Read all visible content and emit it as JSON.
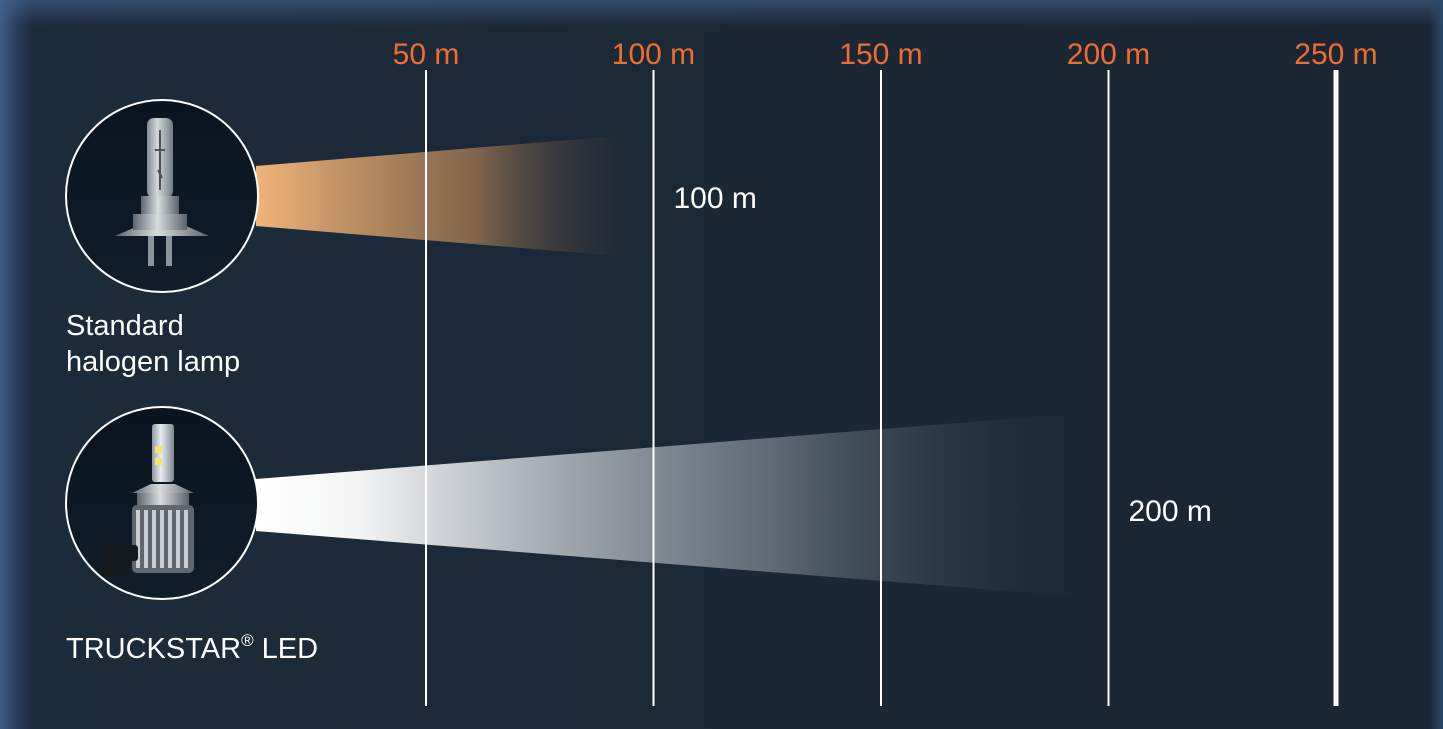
{
  "chart_data": {
    "type": "bar",
    "orientation": "horizontal",
    "x_unit": "m",
    "xlim": [
      0,
      250
    ],
    "ticks": [
      {
        "value": 50,
        "label": "50 m"
      },
      {
        "value": 100,
        "label": "100 m"
      },
      {
        "value": 150,
        "label": "150 m"
      },
      {
        "value": 200,
        "label": "200 m"
      },
      {
        "value": 250,
        "label": "250 m"
      }
    ],
    "series": [
      {
        "name_lines": [
          "Standard",
          "halogen lamp"
        ],
        "value": 100,
        "value_label": "100 m",
        "color": "#f2b57a",
        "icon": "halogen-bulb-icon"
      },
      {
        "name_main": "TRUCKSTAR",
        "name_mark": "®",
        "name_suffix": " LED",
        "value": 200,
        "value_label": "200 m",
        "color": "#ffffff",
        "icon": "led-bulb-icon"
      }
    ],
    "tick_color": "#ef6d2f",
    "background": "#1b2634"
  }
}
